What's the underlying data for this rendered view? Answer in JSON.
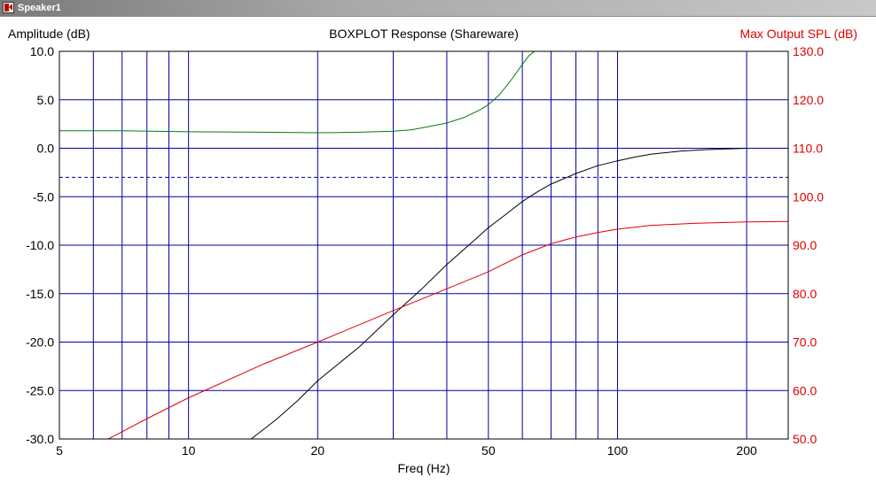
{
  "window": {
    "title": "Speaker1"
  },
  "chart_data": {
    "type": "line",
    "title": "BOXPLOT  Response (Shareware)",
    "xlabel": "Freq (Hz)",
    "ylabel_left": "Amplitude (dB)",
    "ylabel_right": "Max Output SPL (dB)",
    "x_scale": "log",
    "xlim": [
      5,
      250
    ],
    "ylim_left": [
      -30,
      10
    ],
    "ylim_right": [
      50,
      130
    ],
    "x_tick_labels": [
      {
        "value": 5,
        "label": "5"
      },
      {
        "value": 10,
        "label": "10"
      },
      {
        "value": 20,
        "label": "20"
      },
      {
        "value": 50,
        "label": "50"
      },
      {
        "value": 100,
        "label": "100"
      },
      {
        "value": 200,
        "label": "200"
      }
    ],
    "x_gridlines": [
      5,
      6,
      7,
      8,
      9,
      10,
      20,
      30,
      40,
      50,
      60,
      70,
      80,
      90,
      100,
      200
    ],
    "y_left_ticks": [
      {
        "value": 10,
        "label": "10.0"
      },
      {
        "value": 5,
        "label": "5.0"
      },
      {
        "value": 0,
        "label": "0.0"
      },
      {
        "value": -5,
        "label": "-5.0"
      },
      {
        "value": -10,
        "label": "-10.0"
      },
      {
        "value": -15,
        "label": "-15.0"
      },
      {
        "value": -20,
        "label": "-20.0"
      },
      {
        "value": -25,
        "label": "-25.0"
      },
      {
        "value": -30,
        "label": "-30.0"
      }
    ],
    "y_right_ticks": [
      {
        "value": 130,
        "label": "130.0"
      },
      {
        "value": 120,
        "label": "120.0"
      },
      {
        "value": 110,
        "label": "110.0"
      },
      {
        "value": 100,
        "label": "100.0"
      },
      {
        "value": 90,
        "label": "90.0"
      },
      {
        "value": 80,
        "label": "80.0"
      },
      {
        "value": 70,
        "label": "70.0"
      },
      {
        "value": 60,
        "label": "60.0"
      },
      {
        "value": 50,
        "label": "50.0"
      }
    ],
    "reference_line": {
      "axis": "left",
      "value": -3,
      "style": "dashed"
    },
    "grid": true,
    "colors": {
      "grid": "#0000a8",
      "right_axis": "#e00000",
      "reference": "#0000a8"
    },
    "series": [
      {
        "axis": "left",
        "color": "#000000",
        "points": [
          [
            14,
            -30
          ],
          [
            16,
            -28
          ],
          [
            18,
            -26
          ],
          [
            20,
            -24
          ],
          [
            22,
            -22.5
          ],
          [
            25,
            -20.5
          ],
          [
            30,
            -17.2
          ],
          [
            35,
            -14.5
          ],
          [
            40,
            -12
          ],
          [
            45,
            -10
          ],
          [
            50,
            -8.2
          ],
          [
            55,
            -6.8
          ],
          [
            60,
            -5.5
          ],
          [
            65,
            -4.5
          ],
          [
            70,
            -3.7
          ],
          [
            80,
            -2.6
          ],
          [
            90,
            -1.8
          ],
          [
            100,
            -1.3
          ],
          [
            110,
            -0.9
          ],
          [
            120,
            -0.6
          ],
          [
            140,
            -0.3
          ],
          [
            160,
            -0.15
          ],
          [
            200,
            0
          ]
        ]
      },
      {
        "axis": "left",
        "color": "#008000",
        "points": [
          [
            5,
            1.8
          ],
          [
            7,
            1.8
          ],
          [
            10,
            1.7
          ],
          [
            15,
            1.65
          ],
          [
            20,
            1.6
          ],
          [
            25,
            1.65
          ],
          [
            30,
            1.75
          ],
          [
            33,
            1.9
          ],
          [
            36,
            2.2
          ],
          [
            40,
            2.6
          ],
          [
            44,
            3.2
          ],
          [
            48,
            4.0
          ],
          [
            50,
            4.5
          ],
          [
            53,
            5.5
          ],
          [
            56,
            6.8
          ],
          [
            59,
            8.2
          ],
          [
            62,
            9.5
          ],
          [
            64,
            10
          ],
          [
            100,
            10
          ],
          [
            150,
            10
          ],
          [
            250,
            10
          ]
        ]
      },
      {
        "axis": "right",
        "color": "#e00000",
        "points": [
          [
            5,
            50
          ],
          [
            6.5,
            50
          ],
          [
            7,
            51.5
          ],
          [
            8,
            54.2
          ],
          [
            10,
            58.5
          ],
          [
            15,
            65.5
          ],
          [
            20,
            70
          ],
          [
            30,
            76.5
          ],
          [
            40,
            81
          ],
          [
            50,
            84.5
          ],
          [
            60,
            88
          ],
          [
            70,
            90.3
          ],
          [
            80,
            91.7
          ],
          [
            90,
            92.6
          ],
          [
            100,
            93.3
          ],
          [
            120,
            94.1
          ],
          [
            150,
            94.5
          ],
          [
            200,
            94.8
          ],
          [
            250,
            94.9
          ]
        ]
      }
    ]
  }
}
